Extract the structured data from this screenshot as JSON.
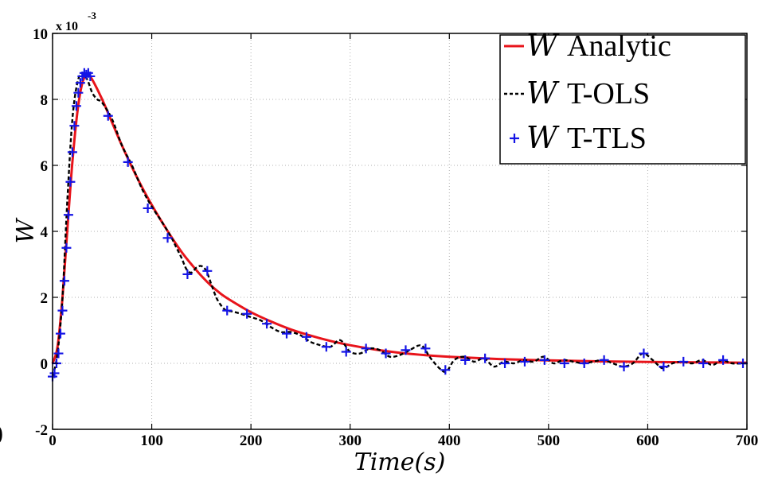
{
  "chart_data": {
    "type": "line",
    "xlabel": "Time(s)",
    "ylabel": "W",
    "y_multiplier": "x 10",
    "y_multiplier_exponent": "-3",
    "xlim": [
      0,
      700
    ],
    "ylim": [
      -2,
      10
    ],
    "x_ticks": [
      0,
      100,
      200,
      300,
      400,
      500,
      600,
      700
    ],
    "y_ticks": [
      -2,
      0,
      2,
      4,
      6,
      8,
      10
    ],
    "grid": true,
    "legend_position": "top-right",
    "series": [
      {
        "name": "W Analytic",
        "legend_symbol": "W",
        "legend_text": "Analytic",
        "color": "#e8141b",
        "style": "solid",
        "x": [
          0,
          5,
          10,
          15,
          20,
          25,
          30,
          35,
          40,
          50,
          60,
          70,
          80,
          90,
          100,
          110,
          120,
          130,
          140,
          150,
          160,
          170,
          180,
          200,
          220,
          240,
          260,
          280,
          300,
          325,
          350,
          375,
          400,
          450,
          500,
          550,
          600,
          650,
          700
        ],
        "y": [
          0,
          0.5,
          2.0,
          4.1,
          6.1,
          7.6,
          8.5,
          8.75,
          8.6,
          8.0,
          7.3,
          6.6,
          5.95,
          5.35,
          4.8,
          4.3,
          3.82,
          3.38,
          3.0,
          2.65,
          2.35,
          2.1,
          1.9,
          1.55,
          1.27,
          1.03,
          0.84,
          0.68,
          0.55,
          0.42,
          0.32,
          0.25,
          0.2,
          0.13,
          0.09,
          0.06,
          0.04,
          0.03,
          0.02
        ]
      },
      {
        "name": "W T-OLS",
        "legend_symbol": "W",
        "legend_text": "T-OLS",
        "color": "#000000",
        "style": "dashed",
        "x": [
          0,
          5,
          10,
          15,
          20,
          25,
          30,
          35,
          40,
          45,
          50,
          60,
          70,
          80,
          90,
          100,
          110,
          120,
          125,
          130,
          135,
          140,
          145,
          150,
          155,
          160,
          165,
          170,
          175,
          180,
          190,
          200,
          210,
          220,
          230,
          240,
          250,
          260,
          270,
          280,
          290,
          300,
          310,
          320,
          330,
          340,
          350,
          360,
          370,
          375,
          380,
          390,
          397,
          405,
          415,
          425,
          435,
          445,
          455,
          465,
          475,
          485,
          495,
          505,
          515,
          525,
          535,
          545,
          555,
          565,
          575,
          585,
          595,
          605,
          615,
          625,
          635,
          645,
          655,
          665,
          675,
          685,
          700
        ],
        "y": [
          -0.4,
          0.3,
          2.0,
          5.0,
          7.4,
          8.5,
          8.8,
          8.6,
          8.2,
          8.0,
          7.9,
          7.4,
          6.6,
          6.0,
          5.3,
          4.75,
          4.3,
          3.8,
          3.5,
          3.2,
          2.85,
          2.75,
          2.9,
          2.95,
          2.8,
          2.4,
          2.0,
          1.75,
          1.6,
          1.58,
          1.5,
          1.4,
          1.3,
          1.1,
          0.95,
          0.95,
          0.85,
          0.65,
          0.55,
          0.5,
          0.7,
          0.35,
          0.3,
          0.45,
          0.4,
          0.2,
          0.25,
          0.4,
          0.55,
          0.45,
          0.2,
          -0.15,
          -0.25,
          0.1,
          0.2,
          0.05,
          0.15,
          -0.1,
          0.05,
          0.0,
          0.1,
          0.05,
          0.2,
          0.0,
          0.1,
          0.05,
          0.0,
          0.05,
          0.1,
          0.0,
          -0.1,
          0.0,
          0.3,
          0.1,
          -0.15,
          0.0,
          0.05,
          0.0,
          0.1,
          -0.05,
          0.1,
          0.0,
          0.0
        ]
      },
      {
        "name": "W T-TLS",
        "legend_symbol": "W",
        "legend_text": "T-TLS",
        "color": "#1414e6",
        "style": "plus-markers",
        "x": [
          0,
          2,
          4,
          6,
          8,
          10,
          12,
          14,
          16,
          18,
          20,
          22,
          24,
          26,
          28,
          30,
          32,
          34,
          36,
          38,
          56,
          76,
          96,
          116,
          136,
          156,
          176,
          196,
          216,
          236,
          256,
          276,
          296,
          316,
          336,
          356,
          376,
          396,
          416,
          436,
          456,
          476,
          496,
          516,
          536,
          556,
          576,
          596,
          616,
          636,
          656,
          676,
          696
        ],
        "y": [
          -0.4,
          -0.3,
          0.0,
          0.3,
          0.9,
          1.6,
          2.5,
          3.5,
          4.5,
          5.5,
          6.4,
          7.2,
          7.8,
          8.2,
          8.5,
          8.7,
          8.8,
          8.75,
          8.8,
          8.7,
          7.5,
          6.1,
          4.7,
          3.8,
          2.7,
          2.8,
          1.6,
          1.5,
          1.2,
          0.9,
          0.8,
          0.5,
          0.35,
          0.45,
          0.3,
          0.4,
          0.45,
          -0.2,
          0.1,
          0.15,
          0.0,
          0.05,
          0.1,
          0.0,
          0.0,
          0.1,
          -0.1,
          0.3,
          -0.1,
          0.05,
          0.0,
          0.1,
          0.0
        ]
      }
    ]
  },
  "stray_glyph": ")"
}
